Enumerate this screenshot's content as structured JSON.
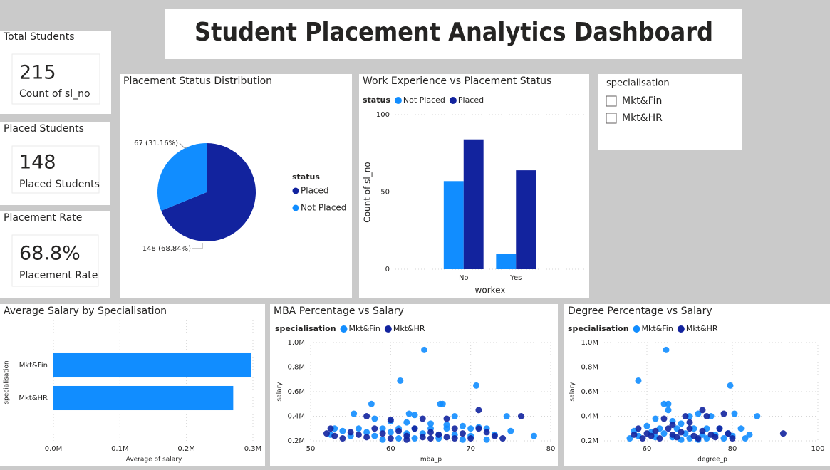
{
  "title": "Student Placement Analytics Dashboard",
  "cards": [
    {
      "title": "Total Students",
      "value": 215,
      "label": "Count of sl_no"
    },
    {
      "title": "Placed Students",
      "value": 148,
      "label": "Placed Students"
    },
    {
      "title": "Placement Rate",
      "value": "68.8%",
      "label": "Placement Rate"
    }
  ],
  "slicer": {
    "title": "specialisation",
    "options": [
      "Mkt&Fin",
      "Mkt&HR"
    ]
  },
  "chart_data": [
    {
      "type": "pie",
      "title": "Placement Status Distribution",
      "legend_title": "status",
      "categories": [
        "Placed",
        "Not Placed"
      ],
      "values": [
        148,
        67
      ],
      "value_labels": [
        "148 (68.84%)",
        "67 (31.16%)"
      ],
      "colors": [
        "#12239e",
        "#118dff"
      ],
      "legend": "right"
    },
    {
      "type": "bar",
      "title": "Work Experience vs Placement Status",
      "legend_title": "status",
      "categories": [
        "No",
        "Yes"
      ],
      "xlabel": "workex",
      "ylabel": "Count of sl_no",
      "series": [
        {
          "name": "Not Placed",
          "color": "#118dff",
          "values": [
            57,
            10
          ]
        },
        {
          "name": "Placed",
          "color": "#12239e",
          "values": [
            84,
            64
          ]
        }
      ],
      "ylim": [
        0,
        100
      ],
      "yticks": [
        0,
        50,
        100
      ],
      "grid": true,
      "legend": "top-left"
    },
    {
      "type": "bar",
      "horizontal": true,
      "title": "Average Salary by Specialisation",
      "categories": [
        "Mkt&Fin",
        "Mkt&HR"
      ],
      "values": [
        297540,
        270377
      ],
      "color": "#118dff",
      "xlabel": "Average of salary",
      "ylabel": "specialisation",
      "xlim": [
        0,
        300000
      ],
      "xticks": [
        {
          "value": 0,
          "label": "0.0M"
        },
        {
          "value": 100000,
          "label": "0.1M"
        },
        {
          "value": 200000,
          "label": "0.2M"
        },
        {
          "value": 300000,
          "label": "0.3M"
        }
      ],
      "grid": true
    },
    {
      "type": "scatter",
      "title": "MBA Percentage vs Salary",
      "legend_title": "specialisation",
      "xlabel": "mba_p",
      "ylabel": "salary",
      "series": [
        {
          "name": "Mkt&Fin",
          "color": "#118dff",
          "x": [
            64.2,
            61.2,
            70.7,
            57.6,
            66.2,
            66.5,
            77.9,
            55.4,
            62.3,
            63,
            68,
            74.5,
            58,
            60,
            62,
            65,
            67,
            69,
            71,
            53,
            56,
            59,
            61,
            63,
            65,
            67,
            70,
            72,
            54,
            57,
            60,
            62,
            64,
            66,
            68,
            70,
            73,
            55,
            58,
            61,
            63,
            66,
            69,
            72,
            59,
            52.5,
            75
          ],
          "values": [
            940000,
            690000,
            650000,
            500000,
            500000,
            500000,
            240000,
            420000,
            420000,
            410000,
            400000,
            400000,
            380000,
            360000,
            350000,
            340000,
            330000,
            320000,
            310000,
            300000,
            300000,
            300000,
            300000,
            300000,
            300000,
            300000,
            300000,
            300000,
            280000,
            270000,
            270000,
            260000,
            260000,
            250000,
            250000,
            240000,
            250000,
            240000,
            240000,
            220000,
            220000,
            220000,
            210000,
            210000,
            210000,
            250000,
            280000
          ]
        },
        {
          "name": "Mkt&HR",
          "color": "#12239e",
          "x": [
            76.3,
            71,
            57,
            60,
            64,
            67,
            52,
            53,
            54,
            55,
            56,
            58,
            59,
            60,
            61,
            62,
            63,
            64,
            65,
            66,
            67,
            68,
            69,
            70,
            71,
            73,
            74,
            52.5,
            57,
            62,
            65,
            68,
            72
          ],
          "values": [
            400000,
            450000,
            400000,
            370000,
            380000,
            380000,
            260000,
            240000,
            220000,
            270000,
            250000,
            300000,
            260000,
            220000,
            280000,
            240000,
            300000,
            230000,
            270000,
            250000,
            230000,
            300000,
            260000,
            220000,
            300000,
            240000,
            220000,
            300000,
            230000,
            210000,
            220000,
            220000,
            270000
          ]
        }
      ],
      "xlim": [
        50,
        80
      ],
      "xticks": [
        50,
        60,
        70,
        80
      ],
      "ylim": [
        200000,
        1000000
      ],
      "yticks": [
        {
          "value": 200000,
          "label": "0.2M"
        },
        {
          "value": 400000,
          "label": "0.4M"
        },
        {
          "value": 600000,
          "label": "0.6M"
        },
        {
          "value": 800000,
          "label": "0.8M"
        },
        {
          "value": 1000000,
          "label": "1.0M"
        }
      ],
      "grid": true,
      "legend": "top-left"
    },
    {
      "type": "scatter",
      "title": "Degree Percentage vs Salary",
      "legend_title": "specialisation",
      "xlabel": "degree_p",
      "ylabel": "salary",
      "series": [
        {
          "name": "Mkt&Fin",
          "color": "#118dff",
          "x": [
            64.5,
            58,
            79.5,
            64,
            65,
            85.8,
            80.5,
            65,
            72,
            70,
            75,
            62,
            66,
            68,
            60,
            63,
            67,
            71,
            74,
            77,
            82,
            57,
            61,
            64,
            69,
            73,
            76,
            79,
            84,
            58,
            62,
            66,
            70,
            74,
            78,
            83,
            56,
            68,
            72,
            80
          ],
          "values": [
            940000,
            690000,
            650000,
            500000,
            500000,
            400000,
            420000,
            450000,
            420000,
            400000,
            400000,
            380000,
            360000,
            340000,
            320000,
            300000,
            300000,
            300000,
            300000,
            300000,
            300000,
            280000,
            270000,
            260000,
            260000,
            250000,
            250000,
            260000,
            250000,
            240000,
            230000,
            230000,
            220000,
            220000,
            220000,
            220000,
            220000,
            210000,
            210000,
            240000
          ]
        },
        {
          "name": "Mkt&HR",
          "color": "#12239e",
          "x": [
            91.9,
            69,
            74,
            78,
            73,
            64,
            58,
            60,
            61,
            62,
            63,
            65,
            66,
            67,
            68,
            70,
            71,
            72,
            73,
            75,
            76,
            77,
            79,
            80,
            57,
            59,
            66,
            70
          ],
          "values": [
            260000,
            400000,
            400000,
            420000,
            450000,
            380000,
            300000,
            260000,
            240000,
            280000,
            220000,
            300000,
            250000,
            230000,
            270000,
            300000,
            240000,
            220000,
            280000,
            250000,
            230000,
            300000,
            260000,
            220000,
            250000,
            220000,
            330000,
            350000
          ]
        }
      ],
      "xlim": [
        50,
        100
      ],
      "xticks": [
        60,
        80,
        100
      ],
      "ylim": [
        200000,
        1000000
      ],
      "yticks": [
        {
          "value": 200000,
          "label": "0.2M"
        },
        {
          "value": 400000,
          "label": "0.4M"
        },
        {
          "value": 600000,
          "label": "0.6M"
        },
        {
          "value": 800000,
          "label": "0.8M"
        },
        {
          "value": 1000000,
          "label": "1.0M"
        }
      ],
      "grid": true,
      "legend": "top-left"
    }
  ]
}
